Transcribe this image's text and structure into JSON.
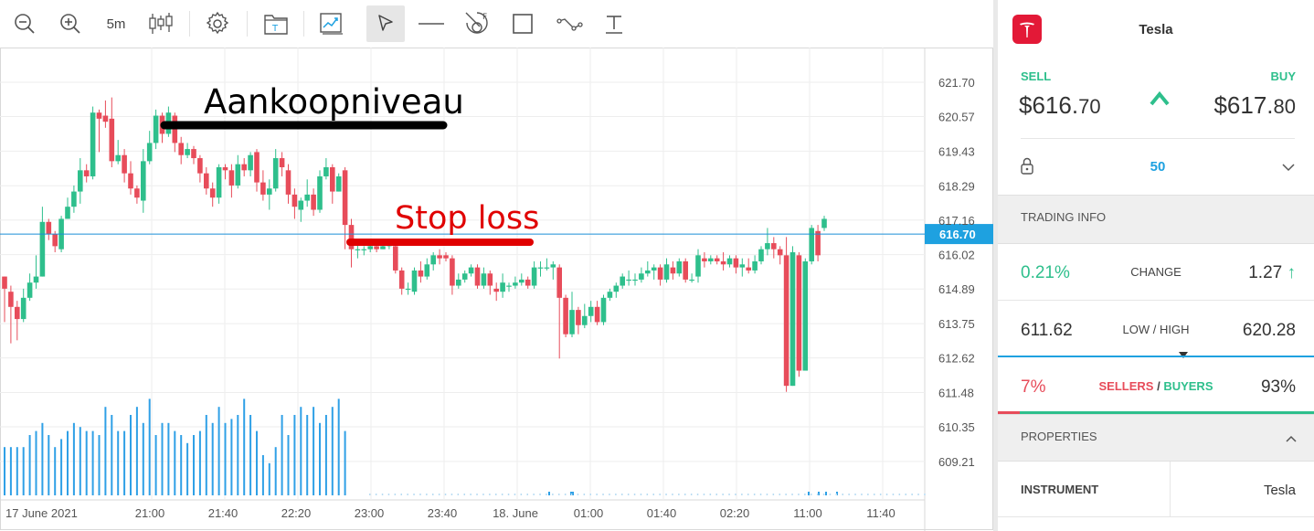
{
  "toolbar": {
    "timeframe": "5m",
    "tools": [
      "zoom-out-icon",
      "zoom-in-icon",
      "timeframe",
      "candles-icon",
      "settings-icon",
      "templates-icon",
      "indicators-icon",
      "cursor-icon",
      "horizontal-line-icon",
      "fibonacci-icon",
      "rectangle-icon",
      "trendline-icon",
      "text-icon"
    ]
  },
  "chart": {
    "y_ticks": [
      "621.70",
      "620.57",
      "619.43",
      "618.29",
      "617.16",
      "616.02",
      "614.89",
      "613.75",
      "612.62",
      "611.48",
      "610.35",
      "609.21"
    ],
    "x_ticks": [
      "17 June 2021",
      "21:00",
      "21:40",
      "22:20",
      "23:00",
      "23:40",
      "18. June",
      "01:00",
      "01:40",
      "02:20",
      "11:00",
      "11:40"
    ],
    "current_price_label": "616.70",
    "annotation_buy": "Aankoopniveau",
    "annotation_stop": "Stop loss",
    "colors": {
      "up": "#2ebf8c",
      "down": "#e74c5a",
      "volume": "#2fa0e6",
      "price_line": "#1a8fd8",
      "stop": "#e00000",
      "buy": "#000000"
    }
  },
  "chart_data": {
    "type": "candlestick",
    "ylim": [
      608.5,
      622.5
    ],
    "candles": [
      [
        615.3,
        614.9,
        615.3,
        613.8
      ],
      [
        614.8,
        614.3,
        615.0,
        613.1
      ],
      [
        614.3,
        613.9,
        614.5,
        613.2
      ],
      [
        613.9,
        614.6,
        614.9,
        613.8
      ],
      [
        614.6,
        615.1,
        615.4,
        614.5
      ],
      [
        615.1,
        615.3,
        616.0,
        614.9
      ],
      [
        615.3,
        617.1,
        617.6,
        615.3
      ],
      [
        617.1,
        616.7,
        617.2,
        616.5
      ],
      [
        616.7,
        616.3,
        616.8,
        616.1
      ],
      [
        616.2,
        617.2,
        617.3,
        616.1
      ],
      [
        617.2,
        617.6,
        617.9,
        617.2
      ],
      [
        617.6,
        618.1,
        618.3,
        617.4
      ],
      [
        618.1,
        618.8,
        619.2,
        617.7
      ],
      [
        618.8,
        618.6,
        619.0,
        618.4
      ],
      [
        618.6,
        620.7,
        620.9,
        618.5
      ],
      [
        620.7,
        620.5,
        620.8,
        619.4
      ],
      [
        620.6,
        620.4,
        621.1,
        620.2
      ],
      [
        620.5,
        619.1,
        621.2,
        618.9
      ],
      [
        619.1,
        619.3,
        619.8,
        619.0
      ],
      [
        619.3,
        618.7,
        619.5,
        618.4
      ],
      [
        618.7,
        618.2,
        619.1,
        618.0
      ],
      [
        618.2,
        617.9,
        618.3,
        617.7
      ],
      [
        617.8,
        619.1,
        619.5,
        617.4
      ],
      [
        619.1,
        619.7,
        620.1,
        619.0
      ],
      [
        619.7,
        620.6,
        620.8,
        619.5
      ],
      [
        620.6,
        620.0,
        620.7,
        619.7
      ],
      [
        620.0,
        620.7,
        620.9,
        619.9
      ],
      [
        620.6,
        619.7,
        620.7,
        619.4
      ],
      [
        619.7,
        619.3,
        619.9,
        619.0
      ],
      [
        619.3,
        619.5,
        619.7,
        619.2
      ],
      [
        619.5,
        619.2,
        619.6,
        619.0
      ],
      [
        619.2,
        618.7,
        619.3,
        618.4
      ],
      [
        618.7,
        618.2,
        618.9,
        618.0
      ],
      [
        618.2,
        617.9,
        618.4,
        617.6
      ],
      [
        617.9,
        618.9,
        619.0,
        617.7
      ],
      [
        618.9,
        618.8,
        619.0,
        618.5
      ],
      [
        618.8,
        618.3,
        619.0,
        617.9
      ],
      [
        618.3,
        619.0,
        619.3,
        618.2
      ],
      [
        619.0,
        618.8,
        619.2,
        618.6
      ],
      [
        618.8,
        619.3,
        619.4,
        618.6
      ],
      [
        619.4,
        618.4,
        619.5,
        618.1
      ],
      [
        618.4,
        618.0,
        618.8,
        617.8
      ],
      [
        618.0,
        618.2,
        618.5,
        617.5
      ],
      [
        618.2,
        619.2,
        619.5,
        618.1
      ],
      [
        619.2,
        618.9,
        619.4,
        618.6
      ],
      [
        618.8,
        618.0,
        619.0,
        617.7
      ],
      [
        618.0,
        617.6,
        618.2,
        617.2
      ],
      [
        617.5,
        617.8,
        617.9,
        617.1
      ],
      [
        617.8,
        618.0,
        618.5,
        617.6
      ],
      [
        618.0,
        617.5,
        618.2,
        617.3
      ],
      [
        617.5,
        618.6,
        618.8,
        617.4
      ],
      [
        618.6,
        618.9,
        619.2,
        618.5
      ],
      [
        618.9,
        618.1,
        619.0,
        617.7
      ],
      [
        618.1,
        618.6,
        618.7,
        618.1
      ],
      [
        618.8,
        617.0,
        618.9,
        616.2
      ],
      [
        617.0,
        616.2,
        617.2,
        615.6
      ],
      [
        616.2,
        616.2,
        616.4,
        615.9
      ],
      [
        616.2,
        616.2,
        616.3,
        616.0
      ],
      [
        616.2,
        616.3,
        616.4,
        616.1
      ],
      [
        616.3,
        616.2,
        616.4,
        616.1
      ],
      [
        616.2,
        616.3,
        616.4,
        616.2
      ],
      [
        616.3,
        616.4,
        616.5,
        616.2
      ],
      [
        616.3,
        615.5,
        616.4,
        615.4
      ],
      [
        615.5,
        614.9,
        615.6,
        614.7
      ],
      [
        614.9,
        614.9,
        615.1,
        614.7
      ],
      [
        614.8,
        615.5,
        615.6,
        614.7
      ],
      [
        615.5,
        615.3,
        615.8,
        615.1
      ],
      [
        615.3,
        615.7,
        615.9,
        615.2
      ],
      [
        615.7,
        616.0,
        616.1,
        615.5
      ],
      [
        616.0,
        615.9,
        616.2,
        615.7
      ],
      [
        616.0,
        615.9,
        616.1,
        615.8
      ],
      [
        615.9,
        615.0,
        616.0,
        614.7
      ],
      [
        615.0,
        615.2,
        615.4,
        614.9
      ],
      [
        615.2,
        615.4,
        615.5,
        615.1
      ],
      [
        615.4,
        615.6,
        615.7,
        615.3
      ],
      [
        615.6,
        615.0,
        615.7,
        614.9
      ],
      [
        615.0,
        615.4,
        615.6,
        614.9
      ],
      [
        615.4,
        615.0,
        615.5,
        614.7
      ],
      [
        614.9,
        614.8,
        615.1,
        614.5
      ],
      [
        614.8,
        615.1,
        615.4,
        614.6
      ],
      [
        615.0,
        615.0,
        615.1,
        614.8
      ],
      [
        615.0,
        615.1,
        615.3,
        614.9
      ],
      [
        615.1,
        615.2,
        615.4,
        615.0
      ],
      [
        615.2,
        615.0,
        615.3,
        614.9
      ],
      [
        615.0,
        615.6,
        615.8,
        614.9
      ],
      [
        615.6,
        615.6,
        615.8,
        615.3
      ],
      [
        615.6,
        615.6,
        615.9,
        615.5
      ],
      [
        615.6,
        615.7,
        615.8,
        615.2
      ],
      [
        615.6,
        614.6,
        615.7,
        612.6
      ],
      [
        614.6,
        613.4,
        614.7,
        613.3
      ],
      [
        613.4,
        614.2,
        614.8,
        613.3
      ],
      [
        614.2,
        613.7,
        614.3,
        613.4
      ],
      [
        613.7,
        614.0,
        614.4,
        613.6
      ],
      [
        614.0,
        614.3,
        614.5,
        613.8
      ],
      [
        614.3,
        613.8,
        614.5,
        613.7
      ],
      [
        613.8,
        614.6,
        614.7,
        613.7
      ],
      [
        614.6,
        614.8,
        614.9,
        614.5
      ],
      [
        614.8,
        615.0,
        615.1,
        614.6
      ],
      [
        615.0,
        615.3,
        615.4,
        614.9
      ],
      [
        615.2,
        615.2,
        615.5,
        615.0
      ],
      [
        615.2,
        615.2,
        615.4,
        615.0
      ],
      [
        615.2,
        615.4,
        615.6,
        615.1
      ],
      [
        615.4,
        615.5,
        615.8,
        615.3
      ],
      [
        615.5,
        615.6,
        615.7,
        615.2
      ],
      [
        615.6,
        615.2,
        615.7,
        615.0
      ],
      [
        615.2,
        615.7,
        615.9,
        615.1
      ],
      [
        615.6,
        615.4,
        615.8,
        615.2
      ],
      [
        615.4,
        615.8,
        615.9,
        615.3
      ],
      [
        615.8,
        615.2,
        615.9,
        615.1
      ],
      [
        615.2,
        615.2,
        615.4,
        615.1
      ],
      [
        615.3,
        616.0,
        616.2,
        615.1
      ],
      [
        615.9,
        615.8,
        616.1,
        615.6
      ],
      [
        615.8,
        615.9,
        616.0,
        615.7
      ],
      [
        615.9,
        615.8,
        616.0,
        615.7
      ],
      [
        615.8,
        615.7,
        616.1,
        615.5
      ],
      [
        615.7,
        615.9,
        616.0,
        615.6
      ],
      [
        615.9,
        615.6,
        616.0,
        615.4
      ],
      [
        615.6,
        615.7,
        615.9,
        615.3
      ],
      [
        615.6,
        615.5,
        615.9,
        615.4
      ],
      [
        615.5,
        615.8,
        616.0,
        615.4
      ],
      [
        615.8,
        616.2,
        616.3,
        615.7
      ],
      [
        616.2,
        616.4,
        616.9,
        616.0
      ],
      [
        616.4,
        616.2,
        616.6,
        615.9
      ],
      [
        616.2,
        616.0,
        616.3,
        615.7
      ],
      [
        616.0,
        611.7,
        616.6,
        611.5
      ],
      [
        611.7,
        616.1,
        616.3,
        611.7
      ],
      [
        616.0,
        612.2,
        616.1,
        612.0
      ],
      [
        612.2,
        615.8,
        615.9,
        613.9
      ],
      [
        615.8,
        616.9,
        617.0,
        615.7
      ],
      [
        616.8,
        616.0,
        617.0,
        615.8
      ],
      [
        616.9,
        617.2,
        617.3,
        616.8
      ]
    ],
    "volume_note": "volume bars shown for first session only"
  },
  "panel": {
    "instrument": "Tesla",
    "sell_label": "SELL",
    "buy_label": "BUY",
    "sell_price_main": "$616.",
    "sell_price_dec": "70",
    "buy_price_main": "$617.",
    "buy_price_dec": "80",
    "quantity": "50",
    "trading_info": "TRADING INFO",
    "change_pct": "0.21%",
    "change_label": "CHANGE",
    "change_value": "1.27",
    "low": "611.62",
    "lowhigh_label": "LOW / HIGH",
    "high": "620.28",
    "sellers_pct": "7%",
    "sellers_label": "SELLERS",
    "buyers_label": "BUYERS",
    "buyers_pct": "93%",
    "sellers_ratio": 0.07,
    "properties": "PROPERTIES",
    "instrument_label": "INSTRUMENT",
    "instrument_value": "Tesla"
  }
}
